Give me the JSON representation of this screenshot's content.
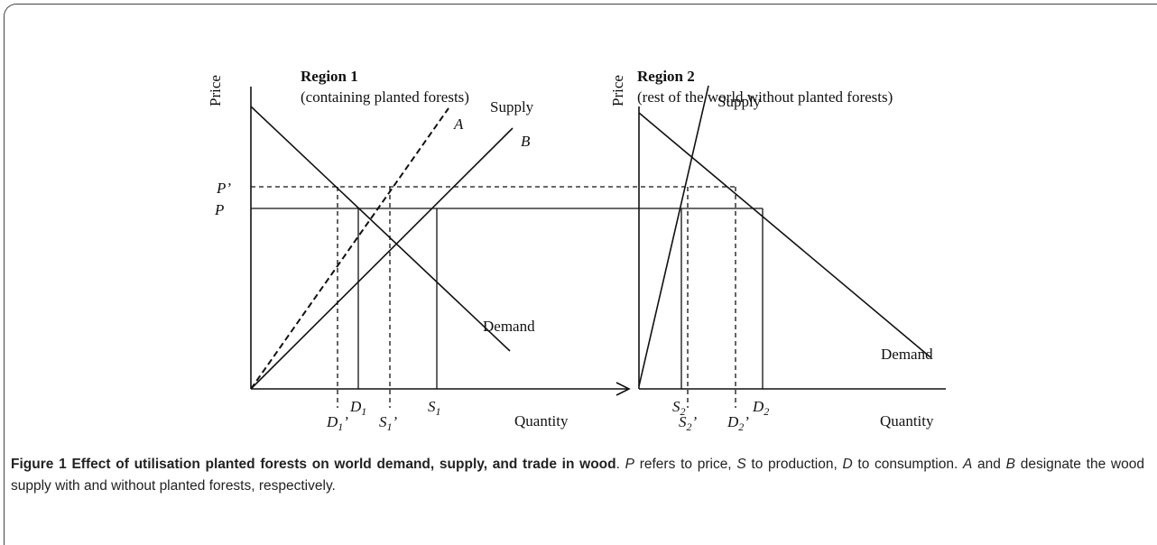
{
  "region1": {
    "title": "Region 1",
    "subtitle": "(containing planted forests)",
    "y_label": "Price",
    "x_label": "Quantity",
    "supply_label": "Supply",
    "demand_label": "Demand",
    "curve_a": "A",
    "curve_b": "B",
    "price_new": "P’",
    "price": "P",
    "d1": {
      "base": "D",
      "sub": "1"
    },
    "s1": {
      "base": "S",
      "sub": "1"
    },
    "d1_new": {
      "base": "D",
      "sub": "1",
      "suffix": "’"
    },
    "s1_new": {
      "base": "S",
      "sub": "1",
      "suffix": "’"
    }
  },
  "region2": {
    "title": "Region 2",
    "subtitle": "(rest of the world without planted forests)",
    "y_label": "Price",
    "x_label": "Quantity",
    "supply_label": "Supply",
    "demand_label": "Demand",
    "s2": {
      "base": "S",
      "sub": "2"
    },
    "d2": {
      "base": "D",
      "sub": "2"
    },
    "s2_new": {
      "base": "S",
      "sub": "2",
      "suffix": "’"
    },
    "d2_new": {
      "base": "D",
      "sub": "2",
      "suffix": "’"
    }
  },
  "caption": {
    "figure_label": "Figure 1",
    "title": "Effect of utilisation planted forests on world demand, supply, and trade in wood",
    "text": [
      {
        "text": ". "
      },
      {
        "text": "P",
        "italic": true
      },
      {
        "text": " refers to price, "
      },
      {
        "text": "S",
        "italic": true
      },
      {
        "text": " to production, "
      },
      {
        "text": "D",
        "italic": true
      },
      {
        "text": " to consumption. "
      },
      {
        "text": "A",
        "italic": true
      },
      {
        "text": " and "
      },
      {
        "text": "B",
        "italic": true
      },
      {
        "text": " designate the wood supply with and without planted forests, respectively."
      }
    ]
  }
}
